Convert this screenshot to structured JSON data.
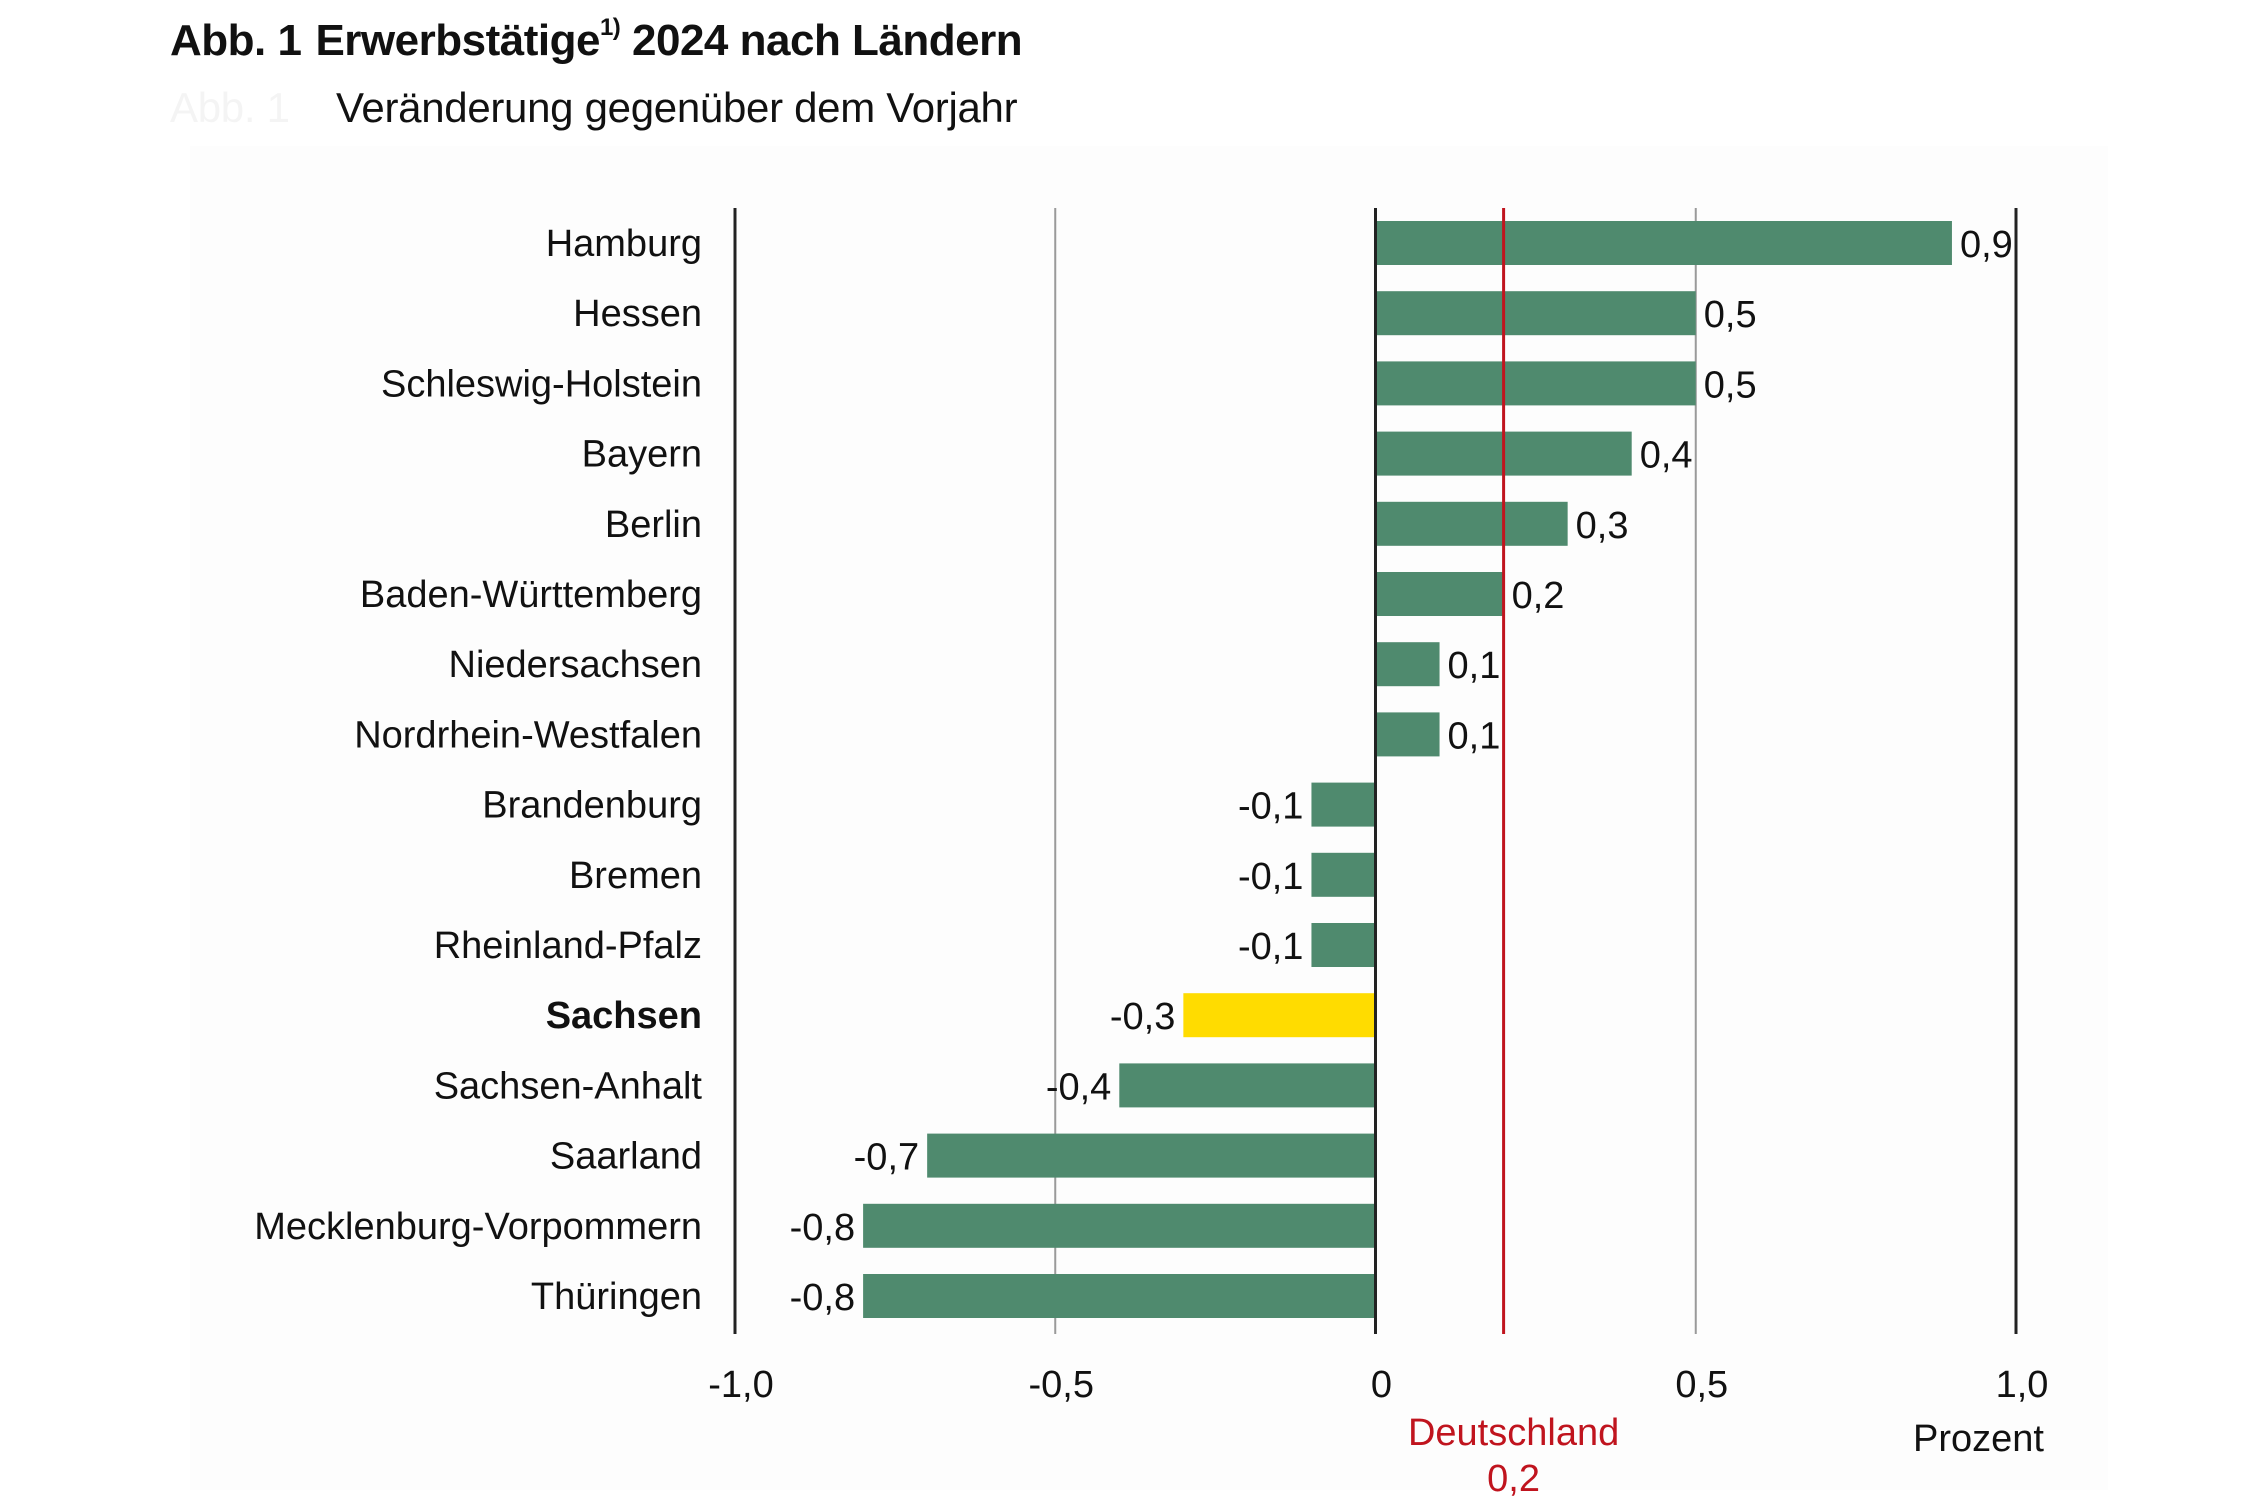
{
  "header": {
    "figure_number": "Abb. 1",
    "title": "Erwerbstätige",
    "footnote_marker": "1)",
    "title_rest": "2024 nach Ländern",
    "subtitle": "Veränderung gegenüber dem Vorjahr",
    "ghost_label": "Abb. 1"
  },
  "chart_data": {
    "type": "bar",
    "orientation": "horizontal",
    "title": "Abb. 1 Erwerbstätige 1) 2024 nach Ländern",
    "subtitle": "Veränderung gegenüber dem Vorjahr",
    "xlabel": "Prozent",
    "ylabel": "",
    "xlim": [
      -1.0,
      1.0
    ],
    "x_ticks": [
      -1.0,
      -0.5,
      0,
      0.5,
      1.0
    ],
    "x_tick_labels": [
      "-1,0",
      "-0,5",
      "0",
      "0,5",
      "1,0"
    ],
    "grid": true,
    "categories": [
      "Hamburg",
      "Hessen",
      "Schleswig-Holstein",
      "Bayern",
      "Berlin",
      "Baden-Württemberg",
      "Niedersachsen",
      "Nordrhein-Westfalen",
      "Brandenburg",
      "Bremen",
      "Rheinland-Pfalz",
      "Sachsen",
      "Sachsen-Anhalt",
      "Saarland",
      "Mecklenburg-Vorpommern",
      "Thüringen"
    ],
    "values": [
      0.9,
      0.5,
      0.5,
      0.4,
      0.3,
      0.2,
      0.1,
      0.1,
      -0.1,
      -0.1,
      -0.1,
      -0.3,
      -0.4,
      -0.7,
      -0.8,
      -0.8
    ],
    "value_labels": [
      "0,9",
      "0,5",
      "0,5",
      "0,4",
      "0,3",
      "0,2",
      "0,1",
      "0,1",
      "-0,1",
      "-0,1",
      "-0,1",
      "-0,3",
      "-0,4",
      "-0,7",
      "-0,8",
      "-0,8"
    ],
    "highlight": "Sachsen",
    "reference_line": {
      "label": "Deutschland",
      "value": 0.2,
      "value_label": "0,2"
    },
    "colors": {
      "bar": "#4f8a6e",
      "highlight": "#ffdc00",
      "reference": "#c0141e",
      "axis": "#222222",
      "grid": "#9a9a9a"
    }
  }
}
